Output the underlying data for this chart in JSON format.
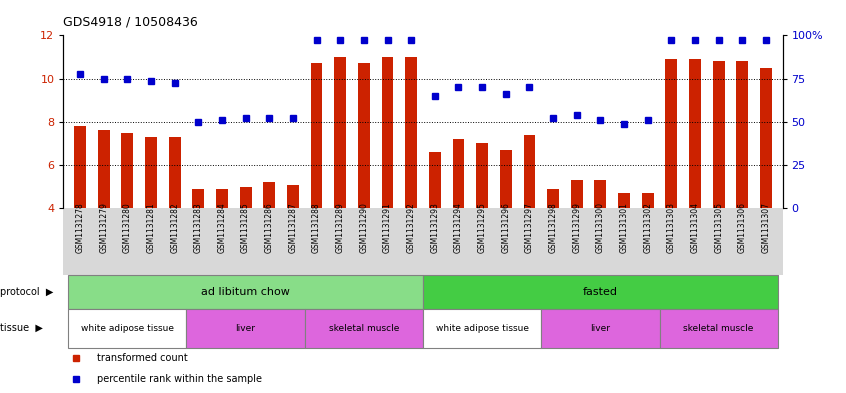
{
  "title": "GDS4918 / 10508436",
  "samples": [
    "GSM1131278",
    "GSM1131279",
    "GSM1131280",
    "GSM1131281",
    "GSM1131282",
    "GSM1131283",
    "GSM1131284",
    "GSM1131285",
    "GSM1131286",
    "GSM1131287",
    "GSM1131288",
    "GSM1131289",
    "GSM1131290",
    "GSM1131291",
    "GSM1131292",
    "GSM1131293",
    "GSM1131294",
    "GSM1131295",
    "GSM1131296",
    "GSM1131297",
    "GSM1131298",
    "GSM1131299",
    "GSM1131300",
    "GSM1131301",
    "GSM1131302",
    "GSM1131303",
    "GSM1131304",
    "GSM1131305",
    "GSM1131306",
    "GSM1131307"
  ],
  "bar_values": [
    7.8,
    7.6,
    7.5,
    7.3,
    7.3,
    4.9,
    4.9,
    5.0,
    5.2,
    5.1,
    10.7,
    11.0,
    10.7,
    11.0,
    11.0,
    6.6,
    7.2,
    7.0,
    6.7,
    7.4,
    4.9,
    5.3,
    5.3,
    4.7,
    4.7,
    10.9,
    10.9,
    10.8,
    10.8,
    10.5
  ],
  "dot_values": [
    10.2,
    10.0,
    10.0,
    9.9,
    9.8,
    8.0,
    8.1,
    8.2,
    8.2,
    8.2,
    11.8,
    11.8,
    11.8,
    11.8,
    11.8,
    9.2,
    9.6,
    9.6,
    9.3,
    9.6,
    8.2,
    8.3,
    8.1,
    7.9,
    8.1,
    11.8,
    11.8,
    11.8,
    11.8,
    11.8
  ],
  "bar_color": "#cc2200",
  "dot_color": "#0000cc",
  "ylim": [
    4,
    12
  ],
  "yticks": [
    4,
    6,
    8,
    10,
    12
  ],
  "ytick_labels_left": [
    "4",
    "6",
    "8",
    "10",
    "12"
  ],
  "ytick_labels_right": [
    "0",
    "25",
    "50",
    "75",
    "100%"
  ],
  "grid_values": [
    6,
    8,
    10
  ],
  "protocol_groups": [
    {
      "label": "ad libitum chow",
      "start": 0,
      "end": 14,
      "color": "#88dd88"
    },
    {
      "label": "fasted",
      "start": 15,
      "end": 29,
      "color": "#44cc44"
    }
  ],
  "tissue_groups": [
    {
      "label": "white adipose tissue",
      "start": 0,
      "end": 4,
      "color": "#ffffff"
    },
    {
      "label": "liver",
      "start": 5,
      "end": 9,
      "color": "#dd66dd"
    },
    {
      "label": "skeletal muscle",
      "start": 10,
      "end": 14,
      "color": "#dd66dd"
    },
    {
      "label": "white adipose tissue",
      "start": 15,
      "end": 19,
      "color": "#ffffff"
    },
    {
      "label": "liver",
      "start": 20,
      "end": 24,
      "color": "#dd66dd"
    },
    {
      "label": "skeletal muscle",
      "start": 25,
      "end": 29,
      "color": "#dd66dd"
    }
  ],
  "legend_bar_label": "transformed count",
  "legend_dot_label": "percentile rank within the sample",
  "protocol_label": "protocol",
  "tissue_label": "tissue",
  "chart_bg": "#ffffff",
  "label_area_bg": "#d8d8d8"
}
